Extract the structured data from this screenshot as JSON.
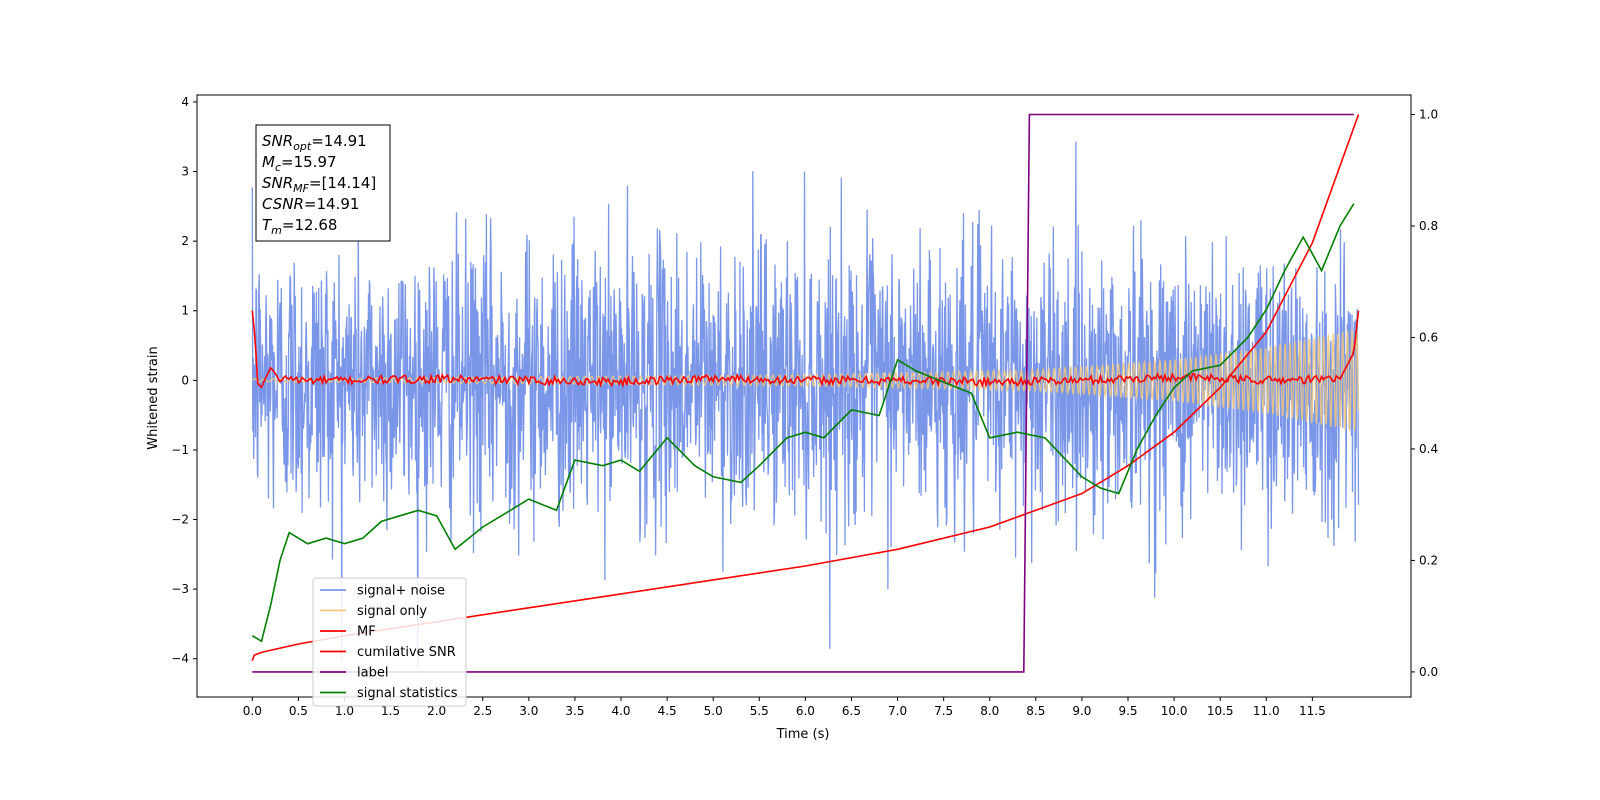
{
  "chart_data": {
    "type": "line",
    "title": "",
    "xlabel": "Time (s)",
    "ylabel": "Whitened strain",
    "y2label": "",
    "xlim": [
      -0.6,
      12.57
    ],
    "ylim": [
      -4.55,
      4.1
    ],
    "y2lim": [
      -0.045,
      1.035
    ],
    "grid": false,
    "legend_position": "lower-left",
    "x_ticks": [
      "0.0",
      "0.5",
      "1.0",
      "1.5",
      "2.0",
      "2.5",
      "3.0",
      "3.5",
      "4.0",
      "4.5",
      "5.0",
      "5.5",
      "6.0",
      "6.5",
      "7.0",
      "7.5",
      "8.0",
      "8.5",
      "9.0",
      "9.5",
      "10.0",
      "10.5",
      "11.0",
      "11.5"
    ],
    "y_ticks": [
      "4",
      "3",
      "2",
      "1",
      "0",
      "−1",
      "−2",
      "−3",
      "−4"
    ],
    "y2_ticks": [
      "1.0",
      "0.8",
      "0.6",
      "0.4",
      "0.2",
      "0.0"
    ],
    "annotation": {
      "lines": [
        {
          "sym": "SNR",
          "sub": "opt",
          "text": "=14.91"
        },
        {
          "sym": "M",
          "sub": "c",
          "text": "=15.97"
        },
        {
          "sym": "SNR",
          "sub": "MF",
          "text": "=[14.14]"
        },
        {
          "sym": "CSNR",
          "sub": "",
          "text": "=14.91"
        },
        {
          "sym": "T",
          "sub": "m",
          "text": "=12.68"
        }
      ]
    },
    "legend": [
      {
        "label": "signal+ noise",
        "color": "#7a96e8"
      },
      {
        "label": "signal only",
        "color": "#f5c97a"
      },
      {
        "label": "MF",
        "color": "#ff0000"
      },
      {
        "label": "cumilative SNR",
        "color": "#ff0000"
      },
      {
        "label": "label",
        "color": "#800080"
      },
      {
        "label": "signal statistics",
        "color": "#008000"
      }
    ],
    "series": [
      {
        "name": "signal+ noise",
        "axis": "left",
        "color": "#7a96e8",
        "noise_amplitude": 1.0,
        "x_range": [
          0.0,
          12.0
        ]
      },
      {
        "name": "signal only",
        "axis": "left",
        "color": "#f5c97a",
        "envelope": [
          [
            0,
            0.02
          ],
          [
            6,
            0.08
          ],
          [
            8.5,
            0.15
          ],
          [
            10,
            0.3
          ],
          [
            11,
            0.48
          ],
          [
            12,
            0.75
          ]
        ]
      },
      {
        "name": "MF",
        "axis": "left",
        "color": "#ff0000",
        "x": [
          0.0,
          0.03,
          0.06,
          0.1,
          0.15,
          0.2,
          0.25,
          0.3,
          0.4,
          0.5,
          1.0,
          2.0,
          3.0,
          4.0,
          5.0,
          6.0,
          7.0,
          8.0,
          9.0,
          10.0,
          11.0,
          11.8,
          11.95,
          12.0
        ],
        "y": [
          1.0,
          0.6,
          -0.05,
          -0.1,
          0.05,
          0.18,
          0.1,
          -0.02,
          0.05,
          0.0,
          0.0,
          0.02,
          0.0,
          -0.02,
          0.03,
          0.0,
          0.0,
          -0.02,
          0.0,
          0.05,
          0.0,
          0.02,
          0.4,
          1.0
        ]
      },
      {
        "name": "cumilative SNR",
        "axis": "right",
        "color": "#ff0000",
        "x": [
          0.0,
          0.02,
          0.1,
          0.5,
          1.0,
          2.0,
          3.0,
          4.0,
          5.0,
          6.0,
          7.0,
          8.0,
          8.5,
          9.0,
          9.5,
          10.0,
          10.5,
          11.0,
          11.5,
          12.0
        ],
        "y": [
          0.02,
          0.03,
          0.035,
          0.05,
          0.065,
          0.09,
          0.115,
          0.14,
          0.165,
          0.19,
          0.22,
          0.26,
          0.29,
          0.32,
          0.37,
          0.43,
          0.51,
          0.61,
          0.77,
          1.0
        ]
      },
      {
        "name": "label",
        "axis": "right",
        "color": "#800080",
        "x": [
          0.0,
          8.37,
          8.43,
          11.95
        ],
        "y": [
          0.0,
          0.0,
          1.0,
          1.0
        ]
      },
      {
        "name": "signal statistics",
        "axis": "right",
        "color": "#008000",
        "x": [
          0.0,
          0.1,
          0.2,
          0.3,
          0.4,
          0.6,
          0.8,
          1.0,
          1.2,
          1.4,
          1.6,
          1.8,
          2.0,
          2.2,
          2.5,
          2.8,
          3.0,
          3.3,
          3.5,
          3.8,
          4.0,
          4.2,
          4.5,
          4.8,
          5.0,
          5.3,
          5.5,
          5.8,
          6.0,
          6.2,
          6.5,
          6.8,
          7.0,
          7.2,
          7.5,
          7.8,
          8.0,
          8.3,
          8.6,
          9.0,
          9.2,
          9.4,
          9.6,
          9.8,
          10.0,
          10.2,
          10.5,
          10.8,
          11.0,
          11.2,
          11.4,
          11.6,
          11.8,
          11.95
        ],
        "y": [
          0.065,
          0.055,
          0.12,
          0.2,
          0.25,
          0.23,
          0.24,
          0.23,
          0.24,
          0.27,
          0.28,
          0.29,
          0.28,
          0.22,
          0.26,
          0.29,
          0.31,
          0.29,
          0.38,
          0.37,
          0.38,
          0.36,
          0.42,
          0.37,
          0.35,
          0.34,
          0.37,
          0.42,
          0.43,
          0.42,
          0.47,
          0.46,
          0.56,
          0.54,
          0.52,
          0.5,
          0.42,
          0.43,
          0.42,
          0.35,
          0.33,
          0.32,
          0.4,
          0.46,
          0.51,
          0.54,
          0.55,
          0.6,
          0.65,
          0.72,
          0.78,
          0.72,
          0.8,
          0.84
        ]
      }
    ]
  }
}
